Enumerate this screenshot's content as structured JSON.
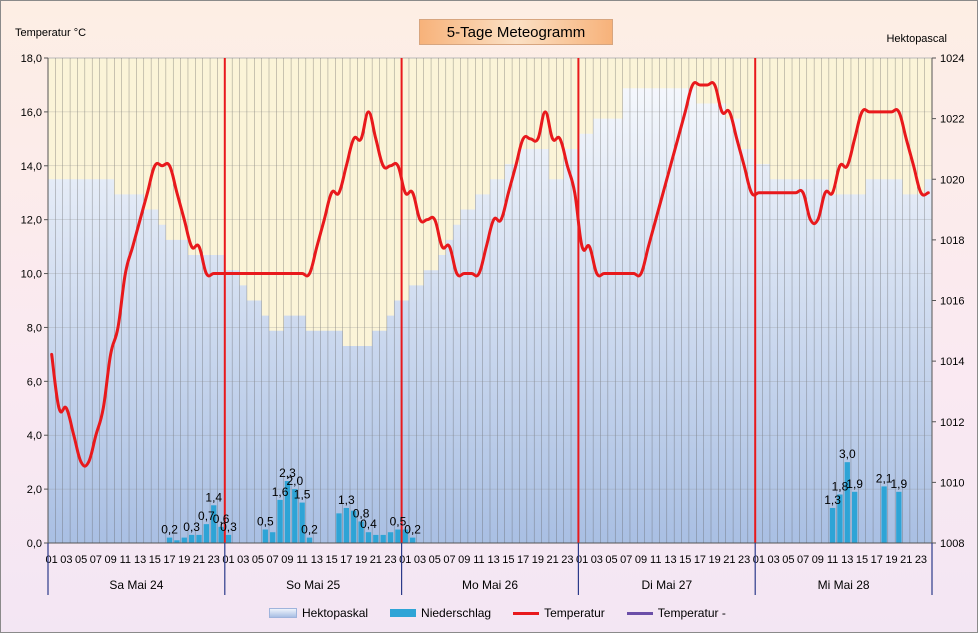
{
  "chart_data": {
    "type": "line",
    "title": "5-Tage Meteogramm",
    "ylabel_left": "Temperatur °C",
    "ylabel_right": "Hektopascal",
    "y_left_range": [
      0,
      18
    ],
    "y_left_ticks": [
      "0,0",
      "2,0",
      "4,0",
      "6,0",
      "8,0",
      "10,0",
      "12,0",
      "14,0",
      "16,0",
      "18,0"
    ],
    "y_right_range": [
      1008,
      1024
    ],
    "y_right_ticks": [
      "1008",
      "1010",
      "1012",
      "1014",
      "1016",
      "1018",
      "1020",
      "1022",
      "1024"
    ],
    "hour_ticks": [
      "01",
      "03",
      "05",
      "07",
      "09",
      "11",
      "13",
      "15",
      "17",
      "19",
      "21",
      "23"
    ],
    "days": [
      "Sa Mai 24",
      "So Mai 25",
      "Mo Mai 26",
      "Di Mai 27",
      "Mi Mai 28"
    ],
    "hours_per_day": 24,
    "series": [
      {
        "name": "Hektopaskal",
        "kind": "area",
        "values": [
          1020,
          1020,
          1020,
          1020,
          1020,
          1020,
          1020,
          1020,
          1020,
          1019.5,
          1019.5,
          1019.5,
          1019.5,
          1019,
          1019,
          1018.5,
          1018,
          1018,
          1018,
          1017.5,
          1017.5,
          1017.5,
          1017.5,
          1017.5,
          1017,
          1017,
          1016.5,
          1016,
          1016,
          1015.5,
          1015,
          1015,
          1015.5,
          1015.5,
          1015.5,
          1015,
          1015,
          1015,
          1015,
          1015,
          1014.5,
          1014.5,
          1014.5,
          1014.5,
          1015,
          1015,
          1015.5,
          1016,
          1016,
          1016.5,
          1016.5,
          1017,
          1017,
          1017.5,
          1018,
          1018.5,
          1019,
          1019,
          1019.5,
          1019.5,
          1020,
          1020,
          1020.5,
          1020.5,
          1021,
          1021,
          1021,
          1021,
          1020,
          1020,
          1021,
          1021,
          1021.5,
          1021.5,
          1022,
          1022,
          1022,
          1022,
          1023,
          1023,
          1023,
          1023,
          1023,
          1023,
          1023,
          1023,
          1023,
          1023,
          1022.5,
          1022.5,
          1022.5,
          1022.5,
          1022,
          1022,
          1021,
          1021,
          1020.5,
          1020.5,
          1020,
          1020,
          1020,
          1020,
          1020,
          1020,
          1020,
          1020,
          1019.5,
          1019.5,
          1019.5,
          1019.5,
          1019.5,
          1020,
          1020,
          1020,
          1020,
          1020,
          1019.5,
          1019.5,
          1019.5,
          1020
        ]
      },
      {
        "name": "Niederschlag",
        "kind": "bar",
        "points": [
          [
            16,
            0.2
          ],
          [
            17,
            0.1
          ],
          [
            18,
            0.2
          ],
          [
            19,
            0.3
          ],
          [
            20,
            0.3
          ],
          [
            21,
            0.7
          ],
          [
            22,
            1.4
          ],
          [
            23,
            0.6
          ],
          [
            24,
            0.3
          ],
          [
            29,
            0.5
          ],
          [
            30,
            0.4
          ],
          [
            31,
            1.6
          ],
          [
            32,
            2.3
          ],
          [
            33,
            2.0
          ],
          [
            34,
            1.5
          ],
          [
            35,
            0.2
          ],
          [
            39,
            1.1
          ],
          [
            40,
            1.3
          ],
          [
            41,
            1.2
          ],
          [
            42,
            0.8
          ],
          [
            43,
            0.4
          ],
          [
            44,
            0.3
          ],
          [
            45,
            0.3
          ],
          [
            46,
            0.4
          ],
          [
            47,
            0.5
          ],
          [
            48,
            0.5
          ],
          [
            49,
            0.2
          ],
          [
            106,
            1.3
          ],
          [
            107,
            1.8
          ],
          [
            108,
            3.0
          ],
          [
            109,
            1.9
          ],
          [
            113,
            2.1
          ],
          [
            115,
            1.9
          ]
        ]
      },
      {
        "name": "Temperatur",
        "kind": "line",
        "values": [
          7,
          5,
          5,
          4,
          3,
          3,
          4,
          5,
          7,
          8,
          10,
          11,
          12,
          13,
          14,
          14,
          14,
          13,
          12,
          11,
          11,
          10,
          10,
          10,
          10,
          10,
          10,
          10,
          10,
          10,
          10,
          10,
          10,
          10,
          10,
          10,
          11,
          12,
          13,
          13,
          14,
          15,
          15,
          16,
          15,
          14,
          14,
          14,
          13,
          13,
          12,
          12,
          12,
          11,
          11,
          10,
          10,
          10,
          10,
          11,
          12,
          12,
          13,
          14,
          15,
          15,
          15,
          16,
          15,
          15,
          14,
          13,
          11,
          11,
          10,
          10,
          10,
          10,
          10,
          10,
          10,
          11,
          12,
          13,
          14,
          15,
          16,
          17,
          17,
          17,
          17,
          16,
          16,
          15,
          14,
          13,
          13,
          13,
          13,
          13,
          13,
          13,
          13,
          12,
          12,
          13,
          13,
          14,
          14,
          15,
          16,
          16,
          16,
          16,
          16,
          16,
          15,
          14,
          13,
          13
        ]
      },
      {
        "name": "Temperatur -",
        "kind": "line",
        "values": []
      }
    ],
    "data_labels": [
      {
        "hour": 16,
        "text": "0,2"
      },
      {
        "hour": 19,
        "text": "0,3"
      },
      {
        "hour": 21,
        "text": "0,7"
      },
      {
        "hour": 22,
        "text": "1,4"
      },
      {
        "hour": 23,
        "text": "0,6"
      },
      {
        "hour": 24,
        "text": "0,3"
      },
      {
        "hour": 29,
        "text": "0,5"
      },
      {
        "hour": 31,
        "text": "1,6"
      },
      {
        "hour": 32,
        "text": "2,3"
      },
      {
        "hour": 33,
        "text": "2,0"
      },
      {
        "hour": 34,
        "text": "1,5"
      },
      {
        "hour": 35,
        "text": "0,2"
      },
      {
        "hour": 40,
        "text": "1,3"
      },
      {
        "hour": 42,
        "text": "0,8"
      },
      {
        "hour": 43,
        "text": "0,4"
      },
      {
        "hour": 47,
        "text": "0,5"
      },
      {
        "hour": 49,
        "text": "0,2"
      },
      {
        "hour": 106,
        "text": "1,3"
      },
      {
        "hour": 107,
        "text": "1,8"
      },
      {
        "hour": 108,
        "text": "3,0"
      },
      {
        "hour": 109,
        "text": "1,9"
      },
      {
        "hour": 113,
        "text": "2,1"
      },
      {
        "hour": 115,
        "text": "1,9"
      }
    ],
    "colors": {
      "temperature": "#e8191c",
      "precipitation": "#2ea4d6",
      "pressure_fill": "#b8c9e8",
      "plot_background": "#fbf4d8",
      "day_separator": "#e8191c",
      "temperature_minus": "#6b4ea8"
    },
    "legend": [
      "Hektopaskal",
      "Niederschlag",
      "Temperatur",
      "Temperatur -"
    ],
    "legend_position": "bottom"
  }
}
